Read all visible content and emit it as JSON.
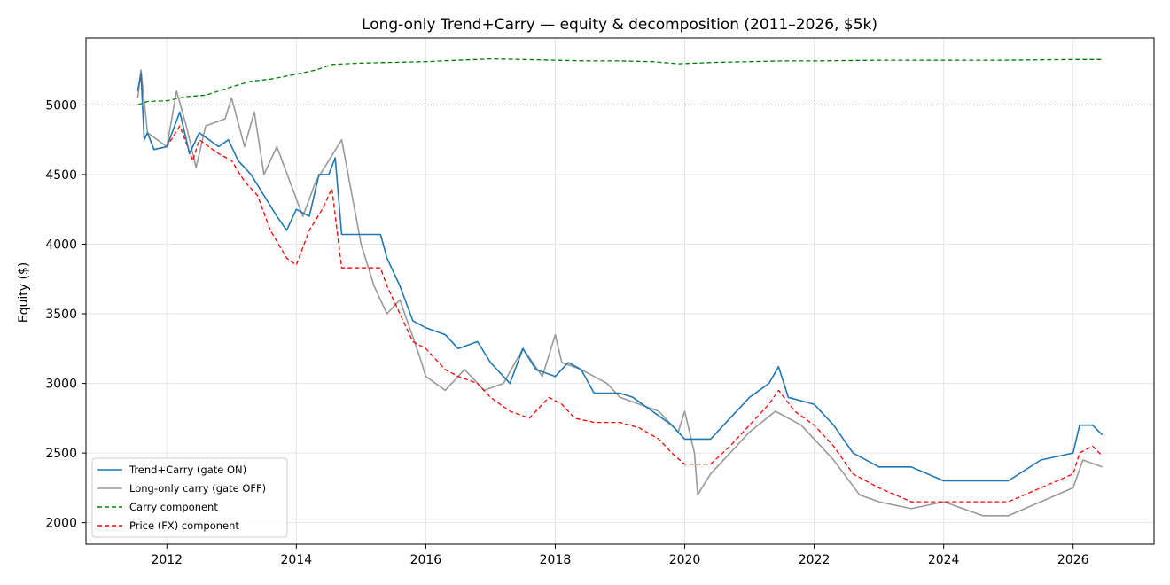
{
  "chart_data": {
    "type": "line",
    "title": "Long-only Trend+Carry — equity & decomposition (2011–2026, $5k)",
    "xlabel": "",
    "ylabel": "Equity ($)",
    "xlim": [
      2010.75,
      2027.25
    ],
    "ylim": [
      1845,
      5480
    ],
    "x_ticks": [
      2012,
      2014,
      2016,
      2018,
      2020,
      2022,
      2024,
      2026
    ],
    "y_ticks": [
      2000,
      2500,
      3000,
      3500,
      4000,
      4500,
      5000
    ],
    "grid": true,
    "reference_line": {
      "y": 5000,
      "style": "dotted",
      "color": "#808080"
    },
    "legend_position": "lower-left",
    "series": [
      {
        "name": "Trend+Carry (gate ON)",
        "color": "#1f77b4",
        "style": "solid",
        "x": [
          2011.55,
          2011.6,
          2011.65,
          2011.7,
          2011.8,
          2012.0,
          2012.2,
          2012.35,
          2012.5,
          2012.8,
          2012.95,
          2013.1,
          2013.3,
          2013.5,
          2013.7,
          2013.85,
          2014.0,
          2014.2,
          2014.35,
          2014.5,
          2014.6,
          2014.7,
          2015.0,
          2015.3,
          2015.4,
          2015.6,
          2015.8,
          2016.0,
          2016.3,
          2016.5,
          2016.8,
          2017.0,
          2017.3,
          2017.5,
          2017.7,
          2018.0,
          2018.2,
          2018.4,
          2018.6,
          2019.0,
          2019.2,
          2019.5,
          2019.8,
          2020.0,
          2020.4,
          2020.7,
          2021.0,
          2021.3,
          2021.45,
          2021.6,
          2022.0,
          2022.3,
          2022.6,
          2023.0,
          2023.5,
          2024.0,
          2024.5,
          2025.0,
          2025.5,
          2026.0,
          2026.1,
          2026.3,
          2026.45
        ],
        "y": [
          5100,
          5230,
          4750,
          4800,
          4680,
          4700,
          4950,
          4650,
          4800,
          4700,
          4750,
          4600,
          4500,
          4350,
          4200,
          4100,
          4250,
          4200,
          4500,
          4500,
          4620,
          4070,
          4070,
          4070,
          3900,
          3700,
          3450,
          3400,
          3350,
          3250,
          3300,
          3150,
          3000,
          3250,
          3100,
          3050,
          3150,
          3100,
          2930,
          2930,
          2900,
          2800,
          2700,
          2600,
          2600,
          2750,
          2900,
          3000,
          3120,
          2900,
          2850,
          2700,
          2500,
          2400,
          2400,
          2300,
          2300,
          2300,
          2450,
          2500,
          2700,
          2700,
          2630
        ]
      },
      {
        "name": "Long-only carry (gate OFF)",
        "color": "#999999",
        "style": "solid",
        "x": [
          2011.55,
          2011.6,
          2011.7,
          2012.0,
          2012.15,
          2012.3,
          2012.45,
          2012.6,
          2012.9,
          2013.0,
          2013.2,
          2013.35,
          2013.5,
          2013.7,
          2013.9,
          2014.1,
          2014.3,
          2014.5,
          2014.7,
          2015.0,
          2015.2,
          2015.4,
          2015.6,
          2015.9,
          2016.0,
          2016.3,
          2016.6,
          2016.9,
          2017.2,
          2017.5,
          2017.8,
          2018.0,
          2018.1,
          2018.4,
          2018.8,
          2019.0,
          2019.3,
          2019.6,
          2019.9,
          2020.0,
          2020.15,
          2020.2,
          2020.4,
          2020.7,
          2021.0,
          2021.4,
          2021.8,
          2022.0,
          2022.3,
          2022.7,
          2023.0,
          2023.5,
          2024.0,
          2024.3,
          2024.6,
          2025.0,
          2025.5,
          2026.0,
          2026.15,
          2026.45
        ],
        "y": [
          5050,
          5250,
          4800,
          4700,
          5100,
          4850,
          4550,
          4850,
          4900,
          5050,
          4700,
          4950,
          4500,
          4700,
          4450,
          4200,
          4450,
          4600,
          4750,
          4000,
          3700,
          3500,
          3600,
          3200,
          3050,
          2950,
          3100,
          2950,
          3000,
          3250,
          3050,
          3350,
          3150,
          3100,
          3000,
          2900,
          2850,
          2800,
          2650,
          2800,
          2500,
          2200,
          2350,
          2500,
          2650,
          2800,
          2700,
          2600,
          2450,
          2200,
          2150,
          2100,
          2150,
          2100,
          2050,
          2050,
          2150,
          2250,
          2450,
          2400
        ]
      },
      {
        "name": "Carry component",
        "color": "#008000",
        "style": "dashed",
        "x": [
          2011.55,
          2011.7,
          2012.0,
          2012.3,
          2012.6,
          2013.0,
          2013.3,
          2013.6,
          2014.0,
          2014.3,
          2014.55,
          2015.0,
          2015.5,
          2016.0,
          2016.5,
          2017.0,
          2017.5,
          2018.0,
          2018.5,
          2019.0,
          2019.5,
          2019.9,
          2020.5,
          2021.0,
          2021.5,
          2022.0,
          2023.0,
          2024.0,
          2025.0,
          2026.0,
          2026.45
        ],
        "y": [
          5000,
          5025,
          5030,
          5060,
          5070,
          5130,
          5170,
          5185,
          5220,
          5250,
          5290,
          5300,
          5305,
          5310,
          5320,
          5330,
          5325,
          5320,
          5315,
          5315,
          5310,
          5295,
          5305,
          5310,
          5315,
          5315,
          5320,
          5320,
          5320,
          5325,
          5325
        ]
      },
      {
        "name": "Price (FX) component",
        "color": "#ff0000",
        "style": "dashed",
        "x": [
          2011.55,
          2011.6,
          2011.65,
          2011.7,
          2011.8,
          2012.0,
          2012.2,
          2012.4,
          2012.5,
          2012.8,
          2013.0,
          2013.2,
          2013.4,
          2013.6,
          2013.85,
          2014.0,
          2014.2,
          2014.4,
          2014.55,
          2014.7,
          2015.0,
          2015.3,
          2015.4,
          2015.6,
          2015.8,
          2016.0,
          2016.3,
          2016.5,
          2016.8,
          2017.0,
          2017.3,
          2017.6,
          2017.9,
          2018.1,
          2018.3,
          2018.6,
          2019.0,
          2019.3,
          2019.6,
          2019.8,
          2020.0,
          2020.4,
          2020.7,
          2021.0,
          2021.3,
          2021.45,
          2021.7,
          2022.0,
          2022.3,
          2022.6,
          2023.0,
          2023.5,
          2024.0,
          2024.5,
          2025.0,
          2025.5,
          2026.0,
          2026.1,
          2026.3,
          2026.45
        ],
        "y": [
          5100,
          5220,
          4750,
          4800,
          4680,
          4700,
          4850,
          4600,
          4750,
          4650,
          4600,
          4450,
          4350,
          4100,
          3900,
          3850,
          4100,
          4250,
          4400,
          3830,
          3830,
          3830,
          3700,
          3500,
          3300,
          3250,
          3100,
          3050,
          3000,
          2900,
          2800,
          2750,
          2900,
          2850,
          2750,
          2720,
          2720,
          2680,
          2600,
          2500,
          2420,
          2420,
          2550,
          2700,
          2850,
          2950,
          2800,
          2700,
          2550,
          2350,
          2250,
          2150,
          2150,
          2150,
          2150,
          2250,
          2350,
          2500,
          2550,
          2480
        ]
      }
    ]
  },
  "legend": {
    "entries": [
      {
        "label": "Trend+Carry (gate ON)",
        "color": "#1f77b4",
        "dash": ""
      },
      {
        "label": "Long-only carry (gate OFF)",
        "color": "#999999",
        "dash": ""
      },
      {
        "label": "Carry component",
        "color": "#008000",
        "dash": "5,3"
      },
      {
        "label": "Price (FX) component",
        "color": "#ff0000",
        "dash": "5,3"
      }
    ]
  }
}
